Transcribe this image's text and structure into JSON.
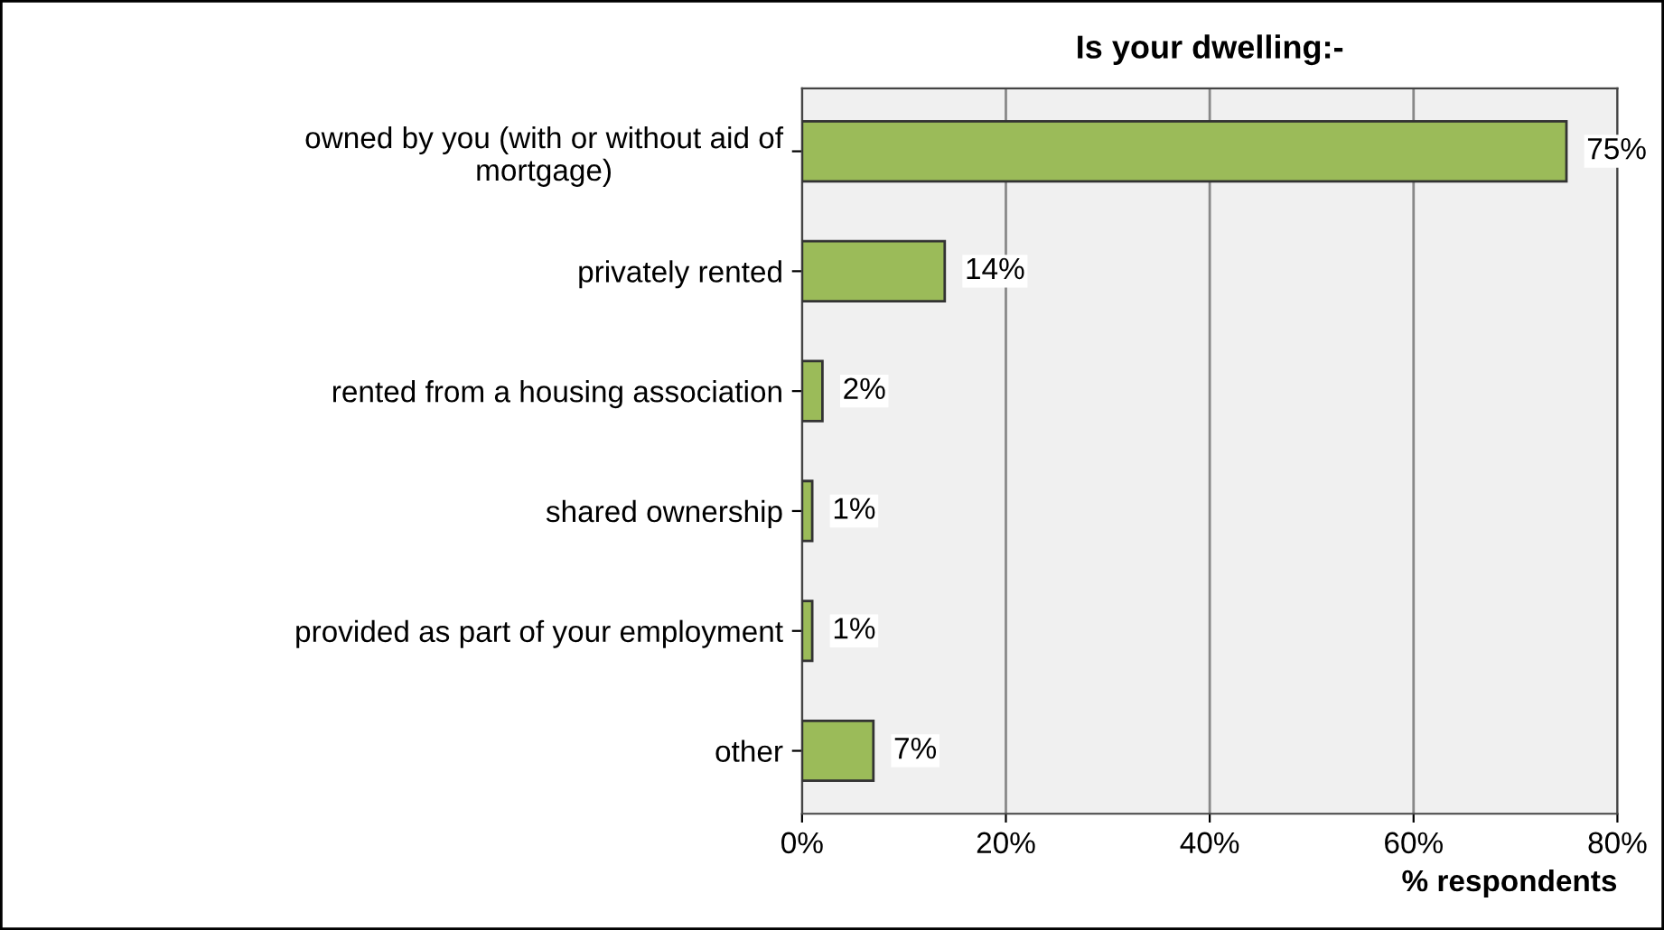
{
  "chart_data": {
    "type": "bar",
    "orientation": "horizontal",
    "title": "Is your dwelling:-",
    "categories": [
      "owned by you (with or without aid of\nmortgage)",
      "privately rented",
      "rented from a housing association",
      "shared ownership",
      "provided as part of your employment",
      "other"
    ],
    "values": [
      75,
      14,
      2,
      1,
      1,
      7
    ],
    "value_labels": [
      "75%",
      "14%",
      "2%",
      "1%",
      "1%",
      "7%"
    ],
    "color": "#9bbb59",
    "xlabel": "% respondents",
    "xlim": [
      0,
      80
    ],
    "xticks": [
      {
        "value": 0,
        "label": "0%"
      },
      {
        "value": 20,
        "label": "20%"
      },
      {
        "value": 40,
        "label": "40%"
      },
      {
        "value": 60,
        "label": "60%"
      },
      {
        "value": 80,
        "label": "80%"
      }
    ],
    "grid": "x"
  }
}
